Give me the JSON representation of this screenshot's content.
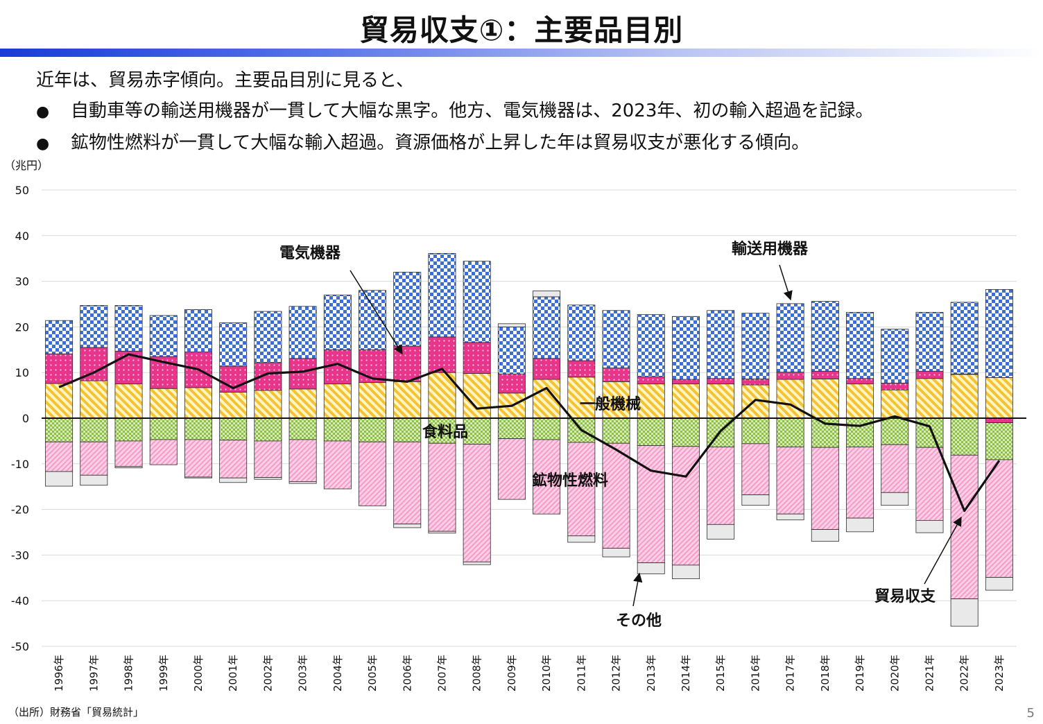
{
  "slide": {
    "title": "貿易収支①：主要品目別",
    "summary_intro": "近年は、貿易赤字傾向。主要品目別に見ると、",
    "bullet_symbol": "●",
    "bullets": [
      "自動車等の輸送用機器が一貫して大幅な黒字。他方、電気機器は、2023年、初の輸入超過を記録。",
      "鉱物性燃料が一貫して大幅な輸入超過。資源価格が上昇した年は貿易収支が悪化する傾向。"
    ],
    "source": "（出所）財務省「貿易統計」",
    "page_number": "5"
  },
  "chart_data": {
    "type": "bar",
    "stacked": true,
    "ylabel": "（兆円）",
    "ylim": [
      -50,
      50
    ],
    "yticks": [
      50,
      40,
      30,
      20,
      10,
      0,
      -10,
      -20,
      -30,
      -40,
      -50
    ],
    "grid": true,
    "categories": [
      "1996年",
      "1997年",
      "1998年",
      "1999年",
      "2000年",
      "2001年",
      "2002年",
      "2003年",
      "2004年",
      "2005年",
      "2006年",
      "2007年",
      "2008年",
      "2009年",
      "2010年",
      "2011年",
      "2012年",
      "2013年",
      "2014年",
      "2015年",
      "2016年",
      "2017年",
      "2018年",
      "2019年",
      "2020年",
      "2021年",
      "2022年",
      "2023年"
    ],
    "series": [
      {
        "name": "一般機械",
        "color": "#f6c232",
        "values": [
          7.6,
          8.2,
          7.5,
          6.5,
          6.7,
          5.7,
          6.1,
          6.4,
          7.5,
          7.8,
          8.0,
          10.0,
          9.8,
          5.5,
          8.5,
          9.0,
          8.0,
          7.5,
          7.5,
          7.5,
          7.3,
          8.5,
          8.6,
          7.5,
          6.2,
          8.7,
          9.6,
          8.9
        ]
      },
      {
        "name": "電気機器",
        "color": "#e8358c",
        "values": [
          6.5,
          7.3,
          7.2,
          7.0,
          7.8,
          5.7,
          6.1,
          6.7,
          7.5,
          7.2,
          7.8,
          7.8,
          6.8,
          4.2,
          4.6,
          3.6,
          3.0,
          1.6,
          1.0,
          1.2,
          1.3,
          1.6,
          1.7,
          1.2,
          1.5,
          1.6,
          0.1,
          -1.0
        ]
      },
      {
        "name": "輸送用機器",
        "color": "#3c6ed4",
        "values": [
          7.3,
          9.2,
          10.0,
          9.0,
          9.3,
          9.5,
          11.2,
          11.4,
          12.0,
          13.0,
          16.2,
          18.3,
          17.8,
          10.3,
          13.5,
          12.2,
          12.6,
          13.6,
          13.8,
          14.9,
          14.4,
          15.0,
          15.3,
          14.5,
          11.8,
          12.9,
          15.7,
          19.3
        ]
      },
      {
        "name": "食料品",
        "color": "#8fbf4a",
        "values": [
          -5.2,
          -5.2,
          -5.0,
          -4.7,
          -4.7,
          -4.8,
          -5.0,
          -4.7,
          -5.0,
          -5.2,
          -5.2,
          -5.5,
          -5.7,
          -4.5,
          -4.7,
          -5.3,
          -5.5,
          -6.0,
          -6.2,
          -6.3,
          -5.6,
          -6.3,
          -6.4,
          -6.3,
          -5.8,
          -6.4,
          -8.1,
          -8.1
        ]
      },
      {
        "name": "鉱物性燃料",
        "color": "#f59bc8",
        "values": [
          -6.5,
          -7.3,
          -5.6,
          -5.5,
          -8.2,
          -8.3,
          -8.0,
          -9.2,
          -10.5,
          -14.0,
          -18.0,
          -19.3,
          -25.8,
          -13.3,
          -16.3,
          -20.5,
          -23.0,
          -25.7,
          -26.0,
          -17.0,
          -11.2,
          -14.7,
          -18.0,
          -15.6,
          -10.5,
          -16.0,
          -31.5,
          -25.8
        ]
      },
      {
        "name": "その他",
        "color": "#e9e9e9",
        "values": [
          -3.2,
          -2.2,
          -0.3,
          0.0,
          -0.2,
          -1.0,
          -0.4,
          -0.4,
          0.0,
          0.0,
          -0.8,
          -0.4,
          -0.6,
          0.7,
          1.3,
          -1.4,
          -1.9,
          -2.4,
          -3.0,
          -3.2,
          -2.3,
          -1.3,
          -2.6,
          -3.0,
          -2.8,
          -2.7,
          -6.0,
          -2.8
        ]
      }
    ],
    "line": {
      "name": "貿易収支",
      "color": "#111111",
      "values": [
        6.8,
        10.0,
        14.0,
        12.3,
        10.7,
        6.6,
        9.8,
        10.2,
        11.9,
        8.7,
        8.0,
        10.8,
        2.1,
        2.7,
        6.6,
        -2.6,
        -6.9,
        -11.5,
        -12.8,
        -2.8,
        4.0,
        3.0,
        -1.2,
        -1.7,
        0.4,
        -1.8,
        -20.3,
        -9.3
      ]
    },
    "annotations": [
      {
        "text": "電気機器",
        "kind": "label-arrow"
      },
      {
        "text": "輸送用機器",
        "kind": "label-arrow"
      },
      {
        "text": "一般機械",
        "kind": "label"
      },
      {
        "text": "食料品",
        "kind": "label"
      },
      {
        "text": "鉱物性燃料",
        "kind": "label"
      },
      {
        "text": "その他",
        "kind": "label-arrow"
      },
      {
        "text": "貿易収支",
        "kind": "label-arrow"
      }
    ]
  }
}
